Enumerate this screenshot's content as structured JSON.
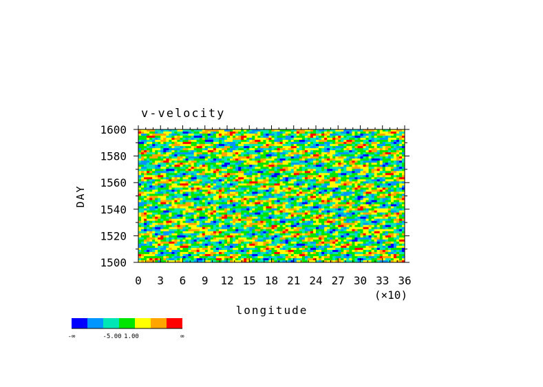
{
  "chart_data": {
    "type": "heatmap",
    "title": "v-velocity",
    "xlabel": "longitude",
    "ylabel": "DAY",
    "x_multiplier_label": "(×10)",
    "xlim": [
      0,
      36
    ],
    "ylim": [
      1500,
      1600
    ],
    "x_ticks": [
      "0",
      "3",
      "6",
      "9",
      "12",
      "15",
      "18",
      "21",
      "24",
      "27",
      "30",
      "33",
      "36"
    ],
    "y_ticks": [
      "1500",
      "1520",
      "1540",
      "1560",
      "1580",
      "1600"
    ],
    "grid": false,
    "colorbar": {
      "colors": [
        "#0000ff",
        "#0096ff",
        "#00e6b4",
        "#00e600",
        "#ffff00",
        "#ffa500",
        "#ff0000"
      ],
      "labels": [
        "-∞",
        "-5.00",
        "1.00",
        "∞"
      ]
    }
  }
}
